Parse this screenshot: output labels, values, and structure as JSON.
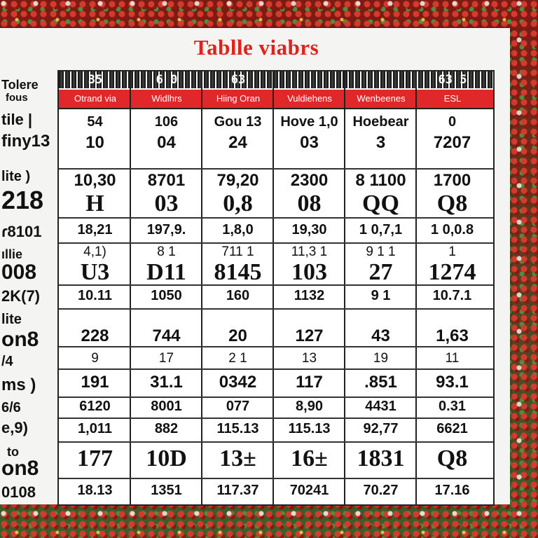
{
  "title": "Tablle viabrs",
  "colors": {
    "title": "#e1211b",
    "header_bg": "#e0282a",
    "border": "#222222"
  },
  "column_numbers": [
    "35",
    "6 0",
    "63",
    "",
    "",
    "63 5"
  ],
  "column_headers": [
    "Otrand via",
    "Widlhrs",
    "Hiing Oran",
    "Vuldiehens",
    "Wenbeenes",
    "ESL"
  ],
  "side_labels": [
    "Tolere",
    "fous",
    "tile |",
    "finy13",
    "lite )",
    "218",
    "ɾ8101",
    "ıllie",
    "008",
    "2K(7)",
    "lite",
    "on8",
    "/4",
    "ms )",
    "6/6",
    "e,9)",
    "to",
    "on8",
    "0108"
  ],
  "rows": [
    [
      "54",
      "106",
      "Gou 13",
      "Hove 1,0",
      "Hoebear",
      "0"
    ],
    [
      "10",
      "04",
      "24",
      "03",
      "3",
      "7207"
    ],
    [
      "10,30",
      "8701",
      "79,20",
      "2300",
      "8 1100",
      "1700"
    ],
    [
      "H",
      "03",
      "0,8",
      "08",
      "QQ",
      "Q8"
    ],
    [
      "18,21",
      "197,9.",
      "1,8,0",
      "19,30",
      "1 0,7,1",
      "1 0,0.8"
    ],
    [
      "4,1)",
      "8 1",
      "711 1",
      "11,3 1",
      "9 1 1",
      "1"
    ],
    [
      "U3",
      "D11",
      "8145",
      "103",
      "27",
      "1274"
    ],
    [
      "10.11",
      "1050",
      "160",
      "1132",
      "9 1",
      "10.7.1"
    ],
    [
      "228",
      "744",
      "20",
      "127",
      "43",
      "1,63"
    ],
    [
      "9",
      "17",
      "2 1",
      "13",
      "19",
      "11"
    ],
    [
      "191",
      "31.1",
      "0342",
      "117",
      ".851",
      "93.1"
    ],
    [
      "6120",
      "8001",
      "077",
      "8,90",
      "4431",
      "0.31"
    ],
    [
      "1,011",
      "882",
      "115.13",
      "115.13",
      "92,77",
      "6621"
    ],
    [
      "177",
      "10D",
      "13±",
      "16±",
      "1831",
      "Q8"
    ],
    [
      "18.13",
      "1351",
      "117.37",
      "70241",
      "70.27",
      "17.16"
    ]
  ]
}
